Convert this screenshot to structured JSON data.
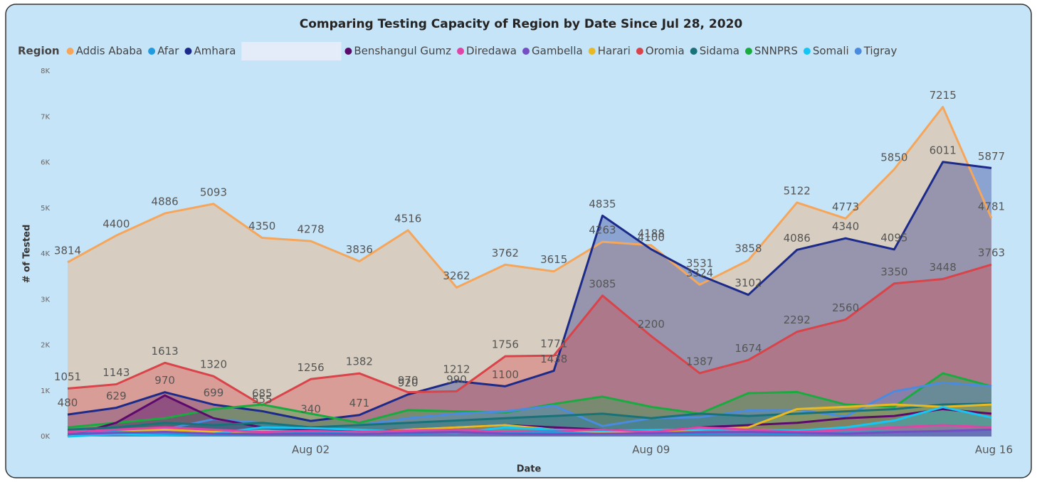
{
  "chart_data": {
    "type": "area",
    "title": "Comparing Testing Capacity of Region by Date Since Jul 28, 2020",
    "legend_title": "Region",
    "x_label": "Date",
    "y_label": "# of Tested",
    "categories": [
      null,
      null,
      null,
      null,
      null,
      "Aug 02",
      null,
      null,
      null,
      null,
      null,
      null,
      "Aug 09",
      null,
      null,
      null,
      null,
      null,
      null,
      "Aug 16"
    ],
    "ylim": [
      0,
      8000
    ],
    "yticks": [
      {
        "value": 0,
        "label": "0K"
      },
      {
        "value": 1000,
        "label": "1K"
      },
      {
        "value": 2000,
        "label": "2K"
      },
      {
        "value": 3000,
        "label": "3K"
      },
      {
        "value": 4000,
        "label": "4K"
      },
      {
        "value": 5000,
        "label": "5K"
      },
      {
        "value": 6000,
        "label": "6K"
      },
      {
        "value": 7000,
        "label": "7K"
      },
      {
        "value": 8000,
        "label": "8K"
      }
    ],
    "series": [
      {
        "name": "Addis Ababa",
        "color": "#f5a65b",
        "values": [
          3814,
          4400,
          4886,
          5093,
          4350,
          4278,
          3836,
          4516,
          3262,
          3762,
          3615,
          4263,
          4188,
          3324,
          3858,
          5122,
          4773,
          5850,
          7215,
          4781
        ]
      },
      {
        "name": "Afar",
        "color": "#1f9bde",
        "values": [
          50,
          100,
          60,
          40,
          50,
          80,
          60,
          70,
          90,
          80,
          100,
          50,
          60,
          70,
          80,
          60,
          90,
          100,
          120,
          150
        ]
      },
      {
        "name": "Amhara",
        "color": "#1c2a8a",
        "values": [
          480,
          629,
          970,
          699,
          555,
          340,
          471,
          920,
          1212,
          1100,
          1438,
          4835,
          4100,
          3531,
          3102,
          4086,
          4340,
          4095,
          6011,
          5877
        ]
      },
      {
        "name": "Benshangul Gumz",
        "color": "#5c0a6e",
        "values": [
          0,
          300,
          900,
          400,
          200,
          150,
          100,
          150,
          200,
          250,
          200,
          150,
          100,
          200,
          250,
          300,
          400,
          450,
          600,
          500
        ]
      },
      {
        "name": "Diredawa",
        "color": "#e044a7",
        "values": [
          100,
          150,
          200,
          150,
          100,
          120,
          100,
          130,
          150,
          100,
          120,
          150,
          100,
          200,
          150,
          100,
          150,
          200,
          250,
          200
        ]
      },
      {
        "name": "Gambella",
        "color": "#744ec2",
        "values": [
          50,
          80,
          100,
          60,
          50,
          60,
          50,
          80,
          100,
          60,
          50,
          60,
          70,
          90,
          100,
          80,
          60,
          100,
          120,
          150
        ]
      },
      {
        "name": "Harari",
        "color": "#e8b923",
        "values": [
          0,
          100,
          150,
          100,
          120,
          100,
          80,
          150,
          200,
          250,
          150,
          100,
          120,
          150,
          200,
          600,
          650,
          700,
          650,
          700
        ]
      },
      {
        "name": "Oromia",
        "color": "#d9434a",
        "values": [
          1051,
          1143,
          1613,
          1320,
          685,
          1256,
          1382,
          970,
          990,
          1756,
          1771,
          3085,
          2200,
          1387,
          1674,
          2292,
          2560,
          3350,
          3448,
          3763
        ]
      },
      {
        "name": "Sidama",
        "color": "#197278",
        "values": [
          150,
          200,
          300,
          250,
          300,
          200,
          250,
          300,
          350,
          400,
          450,
          500,
          400,
          500,
          450,
          500,
          550,
          600,
          700,
          720
        ]
      },
      {
        "name": "SNNPRS",
        "color": "#1aab40",
        "values": [
          200,
          300,
          400,
          600,
          700,
          500,
          300,
          577,
          550,
          523,
          713,
          873,
          650,
          500,
          950,
          975,
          700,
          650,
          1384,
          1100
        ]
      },
      {
        "name": "Somali",
        "color": "#15c6f4",
        "values": [
          0,
          50,
          30,
          60,
          200,
          180,
          150,
          100,
          80,
          200,
          150,
          130,
          140,
          160,
          150,
          130,
          200,
          350,
          645,
          415
        ]
      },
      {
        "name": "Tigray",
        "color": "#4a8bdf",
        "values": [
          152,
          119,
          156,
          380,
          300,
          200,
          250,
          400,
          500,
          550,
          676,
          230,
          400,
          423,
          570,
          586,
          436,
          987,
          1181,
          1100
        ]
      }
    ]
  }
}
